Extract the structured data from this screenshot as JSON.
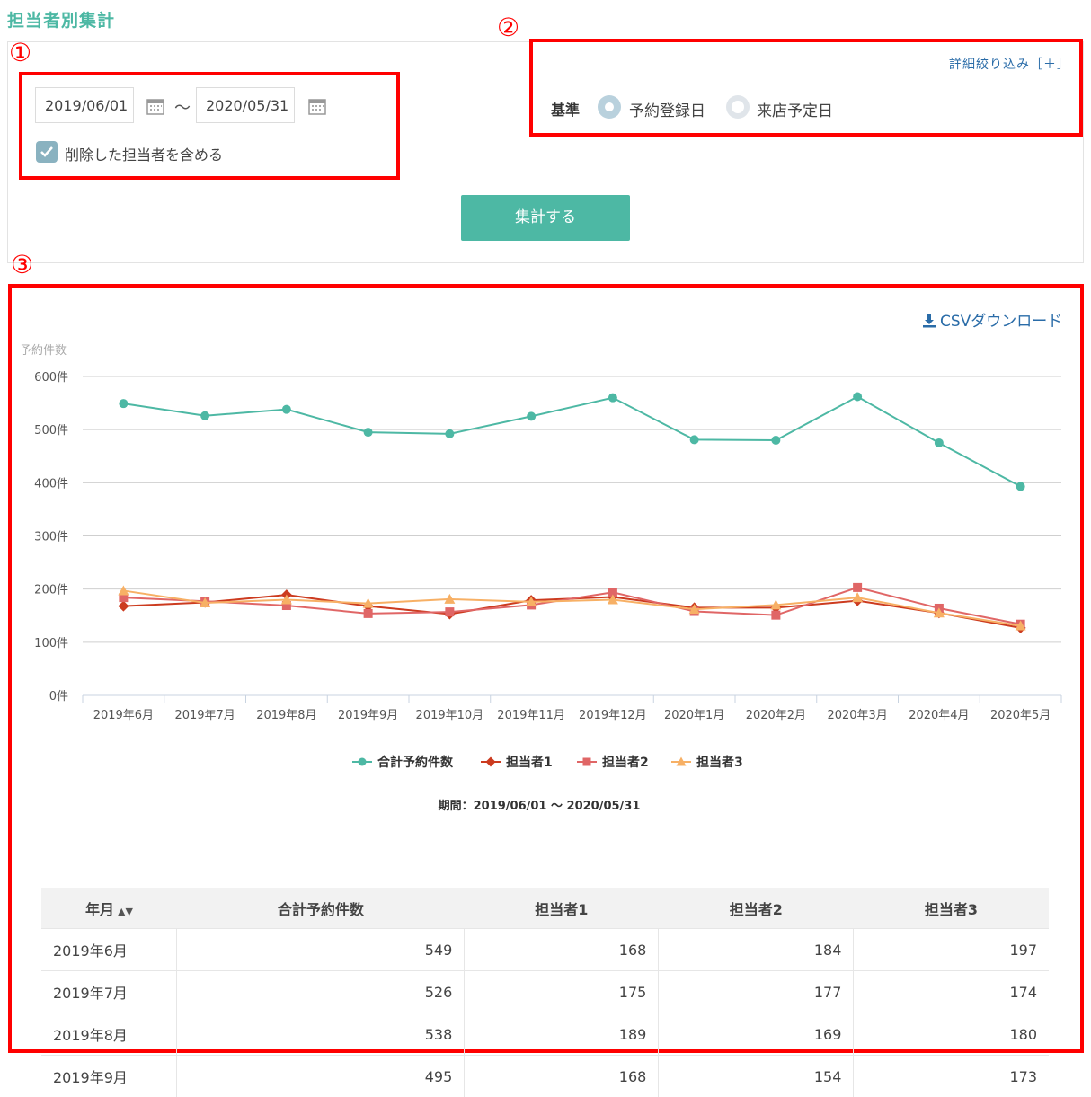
{
  "page_title": "担当者別集計",
  "filters": {
    "date_from": "2019/06/01",
    "tilde": "～",
    "date_to": "2020/05/31",
    "include_deleted_label": "削除した担当者を含める",
    "include_deleted_checked": true,
    "detail_filter_label": "詳細絞り込み［＋］",
    "standard_label": "基準",
    "radio_booking_label": "予約登録日",
    "radio_visit_label": "来店予定日",
    "selected_standard": "予約登録日",
    "submit_label": "集計する"
  },
  "annotations": {
    "mark1": "①",
    "mark2": "②",
    "mark3": "③"
  },
  "csv_label": "CSVダウンロード",
  "colors": {
    "accent": "#4db8a4",
    "link": "#2a6ca8",
    "highlight": "#ff0000"
  },
  "chart_data": {
    "type": "line",
    "ylabel": "予約件数",
    "ylim": [
      0,
      600
    ],
    "yticks": [
      "0件",
      "100件",
      "200件",
      "300件",
      "400件",
      "500件",
      "600件"
    ],
    "categories": [
      "2019年6月",
      "2019年7月",
      "2019年8月",
      "2019年9月",
      "2019年10月",
      "2019年11月",
      "2019年12月",
      "2020年1月",
      "2020年2月",
      "2020年3月",
      "2020年4月",
      "2020年5月"
    ],
    "series": [
      {
        "name": "合計予約件数",
        "color": "#4db8a4",
        "marker": "circle",
        "values": [
          549,
          526,
          538,
          495,
          492,
          525,
          560,
          481,
          480,
          562,
          475,
          393
        ]
      },
      {
        "name": "担当者1",
        "color": "#cc3b1f",
        "marker": "diamond",
        "values": [
          168,
          175,
          189,
          168,
          153,
          179,
          185,
          165,
          165,
          178,
          155,
          127
        ]
      },
      {
        "name": "担当者2",
        "color": "#e06666",
        "marker": "square",
        "values": [
          184,
          177,
          169,
          154,
          157,
          170,
          194,
          158,
          151,
          203,
          164,
          134
        ]
      },
      {
        "name": "担当者3",
        "color": "#f7b065",
        "marker": "triangle",
        "values": [
          197,
          174,
          180,
          173,
          181,
          176,
          180,
          162,
          170,
          184,
          155,
          131
        ]
      }
    ],
    "grid": true,
    "legend": "bottom",
    "caption": "期間：2019/06/01 ～ 2020/05/31"
  },
  "table": {
    "headers": [
      "年月",
      "合計予約件数",
      "担当者1",
      "担当者2",
      "担当者3"
    ],
    "rows": [
      [
        "2019年6月",
        "549",
        "168",
        "184",
        "197"
      ],
      [
        "2019年7月",
        "526",
        "175",
        "177",
        "174"
      ],
      [
        "2019年8月",
        "538",
        "189",
        "169",
        "180"
      ],
      [
        "2019年9月",
        "495",
        "168",
        "154",
        "173"
      ]
    ]
  }
}
